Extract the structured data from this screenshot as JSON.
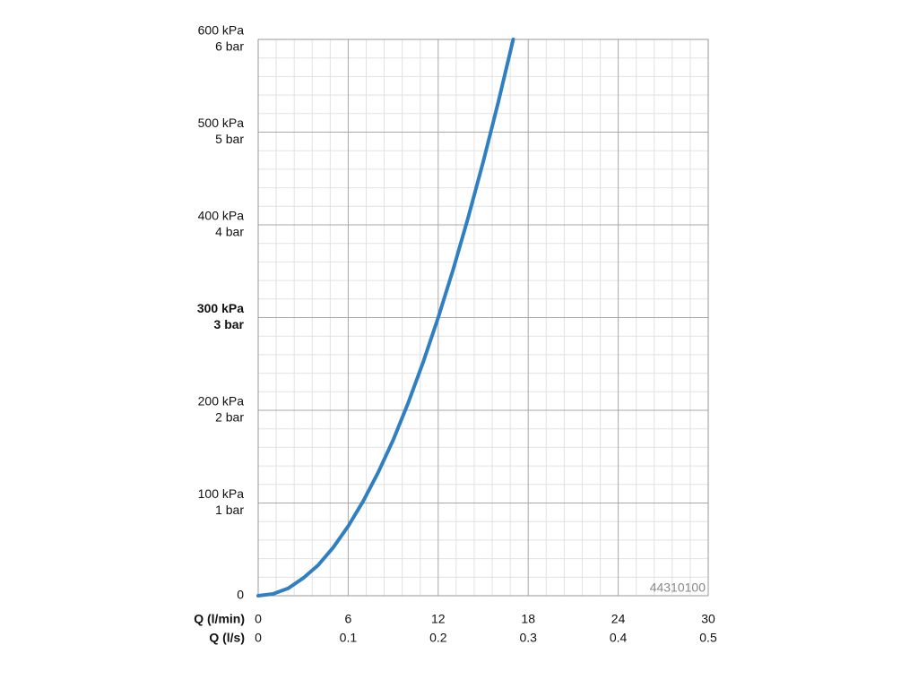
{
  "chart_data": {
    "type": "line",
    "x_label": "Q (l/min)",
    "x2_label": "Q (l/s)",
    "annotation": "44310100",
    "x": [
      0,
      1,
      2,
      3,
      4,
      5,
      6,
      7,
      8,
      9,
      10,
      11,
      12,
      13,
      14,
      15,
      16,
      17
    ],
    "series": [
      {
        "color": "#2f7fc1",
        "values": [
          0,
          2,
          8,
          19,
          33,
          52,
          75,
          102,
          133,
          168,
          208,
          252,
          300,
          352,
          408,
          468,
          532,
          600
        ]
      }
    ],
    "xlim": [
      0,
      30
    ],
    "xticks": [
      0,
      6,
      12,
      18,
      24,
      30
    ],
    "x2lim": [
      0,
      0.5
    ],
    "x2ticks": [
      0,
      0.1,
      0.2,
      0.3,
      0.4,
      0.5
    ],
    "ylim": [
      0,
      600
    ],
    "yticks": [
      0,
      {
        "value": 100,
        "label": "100 kPa"
      },
      {
        "value": 200,
        "label": "200 kPa"
      },
      {
        "value": 300,
        "label": "300 kPa"
      },
      {
        "value": 400,
        "label": "400 kPa"
      },
      {
        "value": 500,
        "label": "500 kPa"
      },
      {
        "value": 600,
        "label": "600 kPa"
      }
    ],
    "y2lim": [
      0,
      6
    ],
    "y2ticks": [
      {
        "value": 1,
        "label": "1 bar"
      },
      {
        "value": 2,
        "label": "2 bar"
      },
      {
        "value": 3,
        "label": "3 bar"
      },
      {
        "value": 4,
        "label": "4 bar"
      },
      {
        "value": 5,
        "label": "5 bar"
      },
      {
        "value": 6,
        "label": "6 bar"
      }
    ],
    "emphasized_ytick": 300,
    "grid": true,
    "minor_divisions": 5
  }
}
